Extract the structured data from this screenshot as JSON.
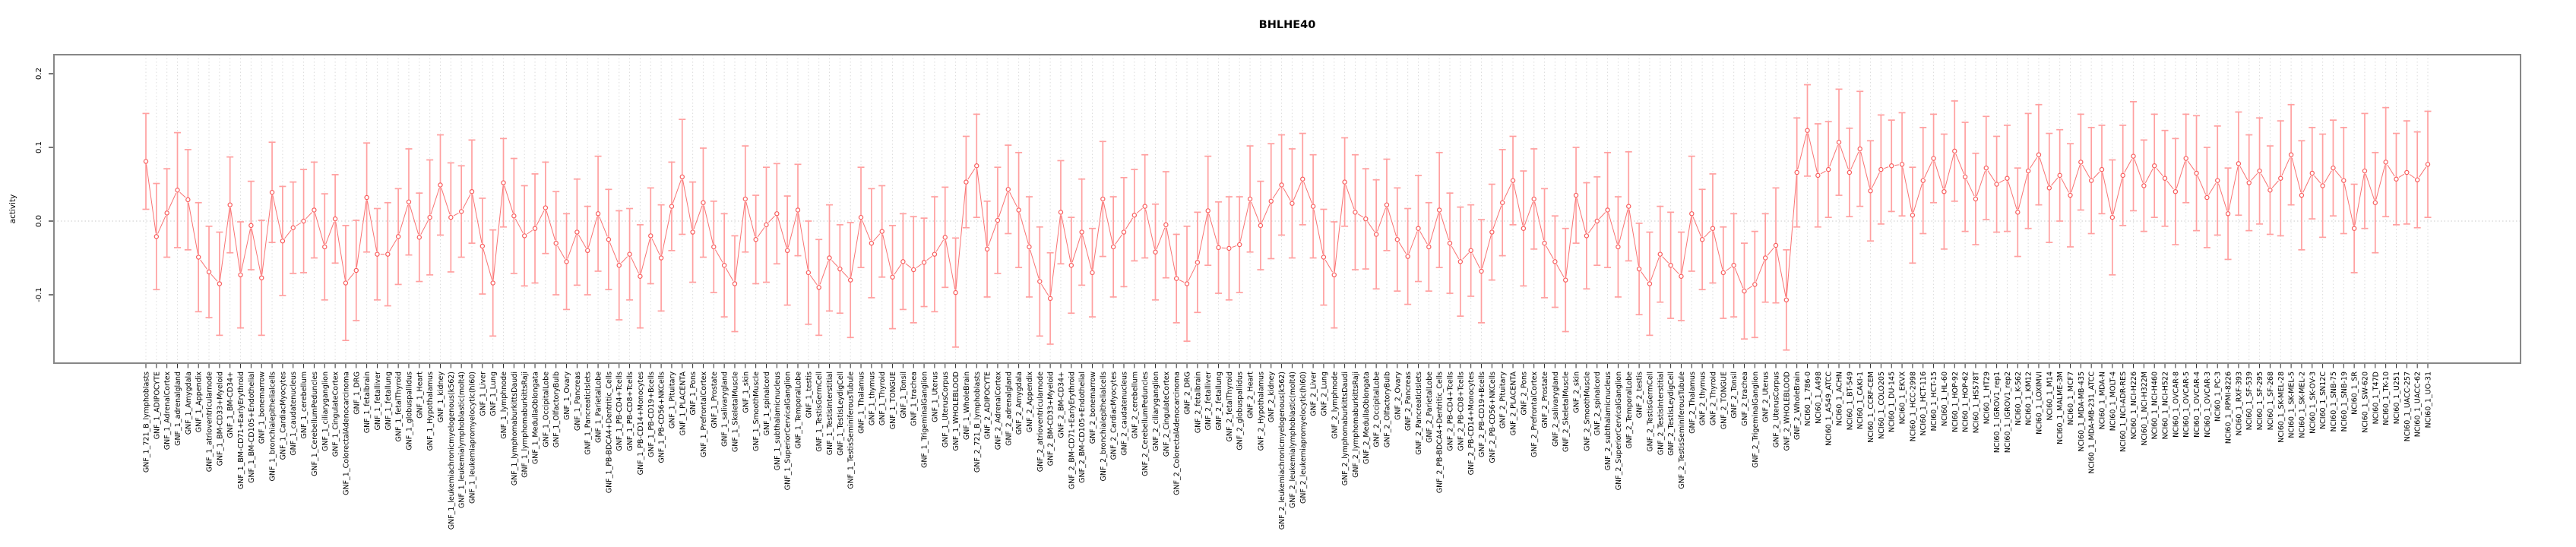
{
  "chart_data": {
    "type": "scatter",
    "subtype": "points-with-errorbars",
    "title": "BHLHE40",
    "xlabel": "",
    "ylabel": "activity",
    "ylim": [
      -0.193,
      0.226
    ],
    "yticks": [
      {
        "label": "0.2",
        "value": 0.2
      },
      {
        "label": "0.1",
        "value": 0.1
      },
      {
        "label": "0.0",
        "value": 0.0
      },
      {
        "label": "-0.1",
        "value": -0.1
      }
    ],
    "grid": "vertical dotted gridline per category; horizontal dotted line at 0",
    "legend_position": "none",
    "style": {
      "point_color": "#f85c5c",
      "line_color": "#f97373",
      "errorbar_color": "#ffa0a0",
      "grid_color": "#dcdcdc",
      "zero_line_color": "#c9c9c9",
      "box_color": "#878787",
      "text_color": "#000000"
    },
    "ci_half_width_pattern": [
      0.065,
      0.072,
      0.06,
      0.078,
      0.068,
      0.074,
      0.062,
      0.07
    ],
    "categories": [
      "GNF_1_721_B_lymphoblasts",
      "GNF_1_ADIPOCYTE",
      "GNF_1_AdrenalCortex",
      "GNF_1_adrenalgland",
      "GNF_1_Amygdala",
      "GNF_1_Appendix",
      "GNF_1_atrioventricularnode",
      "GNF_1_BM-CD33+Myeloid",
      "GNF_1_BM-CD34+",
      "GNF_1_BM-CD71+EarlyErythroid",
      "GNF_1_BM-CD105+Endothelial",
      "GNF_1_bonemarrow",
      "GNF_1_bronchialepithelialcells",
      "GNF_1_CardiacMyocytes",
      "GNF_1_caudatenucleus",
      "GNF_1_cerebellum",
      "GNF_1_CerebellumPeduncles",
      "GNF_1_ciliaryganglion",
      "GNF_1_CingulateCortex",
      "GNF_1_ColorectalAdenocarcinoma",
      "GNF_1_DRG",
      "GNF_1_fetalbrain",
      "GNF_1_fetalliver",
      "GNF_1_fetallung",
      "GNF_1_fetalThyroid",
      "GNF_1_globuspallidus",
      "GNF_1_Heart",
      "GNF_1_Hypothalamus",
      "GNF_1_kidney",
      "GNF_1_leukemiachronicmyelogenous(k562)",
      "GNF_1_leukemialymphoblastic(molt4)",
      "GNF_1_leukemiapromyelocytic(hl60)",
      "GNF_1_Liver",
      "GNF_1_Lung",
      "GNF_1_lymphnode",
      "GNF_1_lymphomaburkittsDaudi",
      "GNF_1_lymphomaburkittsRaji",
      "GNF_1_MedullaOblongata",
      "GNF_1_OccipitalLobe",
      "GNF_1_OlfactoryBulb",
      "GNF_1_Ovary",
      "GNF_1_Pancreas",
      "GNF_1_PancreaticIslets",
      "GNF_1_ParietalLobe",
      "GNF_1_PB-BDCA4+Dentritic_Cells",
      "GNF_1_PB-CD4+Tcells",
      "GNF_1_PB-CD8+Tcells",
      "GNF_1_PB-CD14+Monocytes",
      "GNF_1_PB-CD19+Bcells",
      "GNF_1_PB-CD56+NKCells",
      "GNF_1_Pituitary",
      "GNF_1_PLACENTA",
      "GNF_1_Pons",
      "GNF_1_PrefrontalCortex",
      "GNF_1_Prostate",
      "GNF_1_salivarygland",
      "GNF_1_SkeletalMuscle",
      "GNF_1_skin",
      "GNF_1_SmoothMuscle",
      "GNF_1_spinalcord",
      "GNF_1_subthalamicnucleus",
      "GNF_1_SuperiorCervicalGanglion",
      "GNF_1_TemporalLobe",
      "GNF_1_testis",
      "GNF_1_TestisGermCell",
      "GNF_1_TestisInterstitial",
      "GNF_1_TestisLeydigCell",
      "GNF_1_TestisSeminiferousTubule",
      "GNF_1_Thalamus",
      "GNF_1_thymus",
      "GNF_1_Thyroid",
      "GNF_1_TONGUE",
      "GNF_1_Tonsil",
      "GNF_1_trachea",
      "GNF_1_TrigeminalGanglion",
      "GNF_1_Uterus",
      "GNF_1_UterusCorpus",
      "GNF_1_WHOLEBLOOD",
      "GNF_1_WholeBrain",
      "GNF_2_721_B_lymphoblasts",
      "GNF_2_ADIPOCYTE",
      "GNF_2_AdrenalCortex",
      "GNF_2_adrenalgland",
      "GNF_2_Amygdala",
      "GNF_2_Appendix",
      "GNF_2_atrioventricularnode",
      "GNF_2_BM-CD33+Myeloid",
      "GNF_2_BM-CD34+",
      "GNF_2_BM-CD71+EarlyErythroid",
      "GNF_2_BM-CD105+Endothelial",
      "GNF_2_bonemarrow",
      "GNF_2_bronchialepithelialcells",
      "GNF_2_CardiacMyocytes",
      "GNF_2_caudatenucleus",
      "GNF_2_cerebellum",
      "GNF_2_CerebellumPeduncles",
      "GNF_2_ciliaryganglion",
      "GNF_2_CingulateCortex",
      "GNF_2_ColorectalAdenocarcinoma",
      "GNF_2_DRG",
      "GNF_2_fetalbrain",
      "GNF_2_fetalliver",
      "GNF_2_fetallung",
      "GNF_2_fetalThyroid",
      "GNF_2_globuspallidus",
      "GNF_2_Heart",
      "GNF_2_Hypothalamus",
      "GNF_2_kidney",
      "GNF_2_leukemiachronicmyelogenous(k562)",
      "GNF_2_leukemialymphoblastic(molt4)",
      "GNF_2_leukemiapromyelocytic(hl60)",
      "GNF_2_Liver",
      "GNF_2_Lung",
      "GNF_2_lymphnode",
      "GNF_2_lymphomaburkittsDaudi",
      "GNF_2_lymphomaburkittsRaji",
      "GNF_2_MedullaOblongata",
      "GNF_2_OccipitalLobe",
      "GNF_2_OlfactoryBulb",
      "GNF_2_Ovary",
      "GNF_2_Pancreas",
      "GNF_2_PancreaticIslets",
      "GNF_2_ParietalLobe",
      "GNF_2_PB-BDCA4+Dentritic_Cells",
      "GNF_2_PB-CD4+Tcells",
      "GNF_2_PB-CD8+Tcells",
      "GNF_2_PB-CD14+Monocytes",
      "GNF_2_PB-CD19+Bcells",
      "GNF_2_PB-CD56+NKCells",
      "GNF_2_Pituitary",
      "GNF_2_PLACENTA",
      "GNF_2_Pons",
      "GNF_2_PrefrontalCortex",
      "GNF_2_Prostate",
      "GNF_2_salivarygland",
      "GNF_2_SkeletalMuscle",
      "GNF_2_skin",
      "GNF_2_SmoothMuscle",
      "GNF_2_spinalcord",
      "GNF_2_subthalamicnucleus",
      "GNF_2_SuperiorCervicalGanglion",
      "GNF_2_TemporalLobe",
      "GNF_2_testis",
      "GNF_2_TestisGermCell",
      "GNF_2_TestisInterstitial",
      "GNF_2_TestisLeydigCell",
      "GNF_2_TestisSeminiferousTubule",
      "GNF_2_Thalamus",
      "GNF_2_thymus",
      "GNF_2_Thyroid",
      "GNF_2_TONGUE",
      "GNF_2_Tonsil",
      "GNF_2_trachea",
      "GNF_2_TrigeminalGanglion",
      "GNF_2_Uterus",
      "GNF_2_UterusCorpus",
      "GNF_2_WHOLEBLOOD",
      "GNF_2_WholeBrain",
      "NCI60_1_786-0",
      "NCI60_1_A498",
      "NCI60_1_A549_ATCC",
      "NCI60_1_ACHN",
      "NCI60_1_BT-549",
      "NCI60_1_CAKI-1",
      "NCI60_1_CCRF-CEM",
      "NCI60_1_COLO205",
      "NCI60_1_DU-145",
      "NCI60_1_EKVX",
      "NCI60_1_HCC-2998",
      "NCI60_1_HCT-116",
      "NCI60_1_HCT-15",
      "NCI60_1_HL-60",
      "NCI60_1_HOP-92",
      "NCI60_1_HOP-62",
      "NCI60_1_HS578T",
      "NCI60_1_HT29",
      "NCI60_1_IGROV1_rep1",
      "NCI60_1_IGROV1_rep2",
      "NCI60_1_K-562",
      "NCI60_1_KM12",
      "NCI60_1_LOXIMVI",
      "NCI60_1_M14",
      "NCI60_1_MALME-3M",
      "NCI60_1_MCF7",
      "NCI60_1_MDA-MB-435",
      "NCI60_1_MDA-MB-231_ATCC",
      "NCI60_1_MDA-N",
      "NCI60_1_MOLT-4",
      "NCI60_1_NCI-ADR-RES",
      "NCI60_1_NCI-H226",
      "NCI60_1_NCI-H322M",
      "NCI60_1_NCI-H460",
      "NCI60_1_NCI-H522",
      "NCI60_1_OVCAR-8",
      "NCI60_1_OVCAR-5",
      "NCI60_1_OVCAR-4",
      "NCI60_1_OVCAR-3",
      "NCI60_1_PC-3",
      "NCI60_1_RPMI-8226",
      "NCI60_1_RXF-393",
      "NCI60_1_SF-539",
      "NCI60_1_SF-295",
      "NCI60_1_SF-268",
      "NCI60_1_SK-MEL-28",
      "NCI60_1_SK-MEL-5",
      "NCI60_1_SK-MEL-2",
      "NCI60_1_SK-OV-3",
      "NCI60_1_SN12C",
      "NCI60_1_SNB-75",
      "NCI60_1_SNB-19",
      "NCI60_1_SR",
      "NCI60_1_SW-620",
      "NCI60_1_T47D",
      "NCI60_1_TK-10",
      "NCI60_1_U251",
      "NCI60_1_UACC-257",
      "NCI60_1_UACC-62",
      "NCI60_1_UO-31"
    ],
    "values": [
      0.081,
      -0.021,
      0.011,
      0.042,
      0.029,
      -0.049,
      -0.069,
      -0.085,
      0.022,
      -0.073,
      -0.006,
      -0.077,
      0.039,
      -0.027,
      -0.009,
      0.0,
      0.015,
      -0.035,
      0.003,
      -0.084,
      -0.067,
      0.032,
      -0.045,
      -0.045,
      -0.021,
      0.026,
      -0.022,
      0.005,
      0.049,
      0.005,
      0.013,
      0.04,
      -0.034,
      -0.084,
      0.052,
      0.007,
      -0.02,
      -0.01,
      0.018,
      -0.03,
      -0.055,
      -0.015,
      -0.04,
      0.01,
      -0.025,
      -0.06,
      -0.045,
      -0.075,
      -0.02,
      -0.05,
      0.02,
      0.06,
      -0.015,
      0.025,
      -0.035,
      -0.06,
      -0.085,
      0.03,
      -0.025,
      -0.005,
      0.01,
      -0.04,
      0.015,
      -0.07,
      -0.09,
      -0.05,
      -0.065,
      -0.08,
      0.005,
      -0.03,
      -0.014,
      -0.076,
      -0.055,
      -0.066,
      -0.056,
      -0.045,
      -0.022,
      -0.097,
      0.053,
      0.075,
      -0.038,
      0.001,
      0.043,
      0.015,
      -0.035,
      -0.082,
      -0.105,
      0.012,
      -0.06,
      -0.015,
      -0.07,
      0.03,
      -0.035,
      -0.015,
      0.008,
      0.02,
      -0.042,
      -0.005,
      -0.078,
      -0.085,
      -0.056,
      0.014,
      -0.036,
      -0.037,
      -0.032,
      0.03,
      -0.006,
      0.027,
      0.049,
      0.024,
      0.057,
      0.02,
      -0.049,
      -0.073,
      0.053,
      0.012,
      0.003,
      -0.018,
      0.022,
      -0.025,
      -0.048,
      -0.01,
      -0.035,
      0.015,
      -0.03,
      -0.055,
      -0.04,
      -0.068,
      -0.015,
      0.025,
      0.055,
      -0.01,
      0.03,
      -0.03,
      -0.055,
      -0.08,
      0.035,
      -0.02,
      0.0,
      0.015,
      -0.035,
      0.02,
      -0.065,
      -0.085,
      -0.045,
      -0.06,
      -0.075,
      0.01,
      -0.025,
      -0.01,
      -0.07,
      -0.06,
      -0.095,
      -0.086,
      -0.05,
      -0.033,
      -0.107,
      0.066,
      0.123,
      0.062,
      0.07,
      0.107,
      0.066,
      0.098,
      0.041,
      0.07,
      0.075,
      0.077,
      0.008,
      0.055,
      0.085,
      0.04,
      0.095,
      0.06,
      0.03,
      0.072,
      0.05,
      0.058,
      0.012,
      0.068,
      0.09,
      0.045,
      0.062,
      0.035,
      0.08,
      0.055,
      0.07,
      0.005,
      0.062,
      0.088,
      0.048,
      0.075,
      0.058,
      0.04,
      0.085,
      0.065,
      0.032,
      0.055,
      0.01,
      0.078,
      0.052,
      0.068,
      0.042,
      0.058,
      0.09,
      0.035,
      0.065,
      0.048,
      0.072,
      0.055,
      -0.01,
      0.068,
      0.025,
      0.08,
      0.057,
      0.066,
      0.056,
      0.077
    ]
  }
}
